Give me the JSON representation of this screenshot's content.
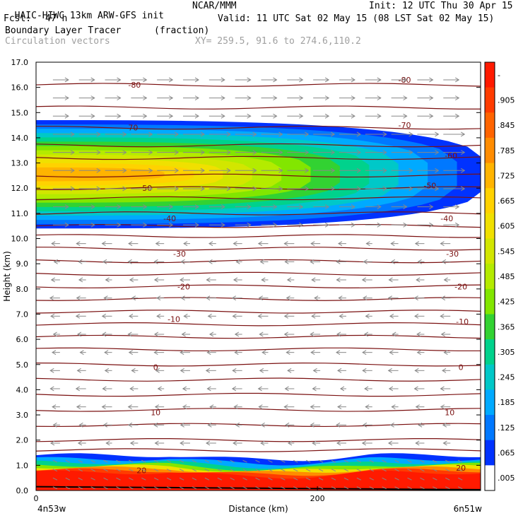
{
  "header": {
    "model": "HAIC-HIWC 13km ARW-GFS init",
    "org": "NCAR/MMM",
    "init": "Init: 12 UTC Thu 30 Apr 15",
    "fcst_label": "Fcst:",
    "fcst_value": "47 h",
    "valid": "Valid: 11 UTC Sat 02 May 15 (08 LST Sat 02 May 15)",
    "field_name": "Boundary Layer Tracer",
    "field_units": "(fraction)",
    "vectors_label": "Circulation vectors",
    "xy_range": "XY= 259.5, 91.6 to 274.6,110.2"
  },
  "chart_data": {
    "type": "heatmap",
    "ylabel": "Height (km)",
    "xlabel": "Distance (km)",
    "ylim": [
      0.0,
      17.0
    ],
    "xlim": [
      0,
      316
    ],
    "y_ticks": [
      "0.0",
      "1.0",
      "2.0",
      "3.0",
      "4.0",
      "5.0",
      "6.0",
      "7.0",
      "8.0",
      "9.0",
      "10.0",
      "11.0",
      "12.0",
      "13.0",
      "14.0",
      "15.0",
      "16.0",
      "17.0"
    ],
    "x_ticks": [
      {
        "value": 0,
        "label": "0"
      },
      {
        "value": 200,
        "label": "200"
      }
    ],
    "x_endpoint_labels": {
      "left": "4n53w",
      "right": "6n51w"
    },
    "colorbar_labels": [
      "-",
      ".905",
      ".845",
      ".785",
      ".725",
      ".665",
      ".605",
      ".545",
      ".485",
      ".425",
      ".365",
      ".305",
      ".245",
      ".185",
      ".125",
      ".065",
      ".005"
    ],
    "colorbar_colors": [
      "#ff1a00",
      "#ff3c00",
      "#ff6400",
      "#ff8c00",
      "#ffb400",
      "#ffd200",
      "#f0e000",
      "#d2e600",
      "#b4eb00",
      "#82e600",
      "#32d232",
      "#00d28c",
      "#00c8c8",
      "#00aaff",
      "#0078ff",
      "#0032ff",
      "#ffffff"
    ],
    "contour_field": "temperature (C)",
    "contour_labels": [
      {
        "value": "-80",
        "positions": [
          [
            70,
            16.1
          ],
          [
            262,
            16.3
          ]
        ]
      },
      {
        "value": "-70",
        "positions": [
          [
            68,
            14.4
          ],
          [
            262,
            14.5
          ]
        ]
      },
      {
        "value": "-60",
        "positions": [
          [
            295,
            13.3
          ]
        ]
      },
      {
        "value": "-50",
        "positions": [
          [
            78,
            12.0
          ],
          [
            280,
            12.1
          ]
        ]
      },
      {
        "value": "-40",
        "positions": [
          [
            95,
            10.8
          ],
          [
            292,
            10.8
          ]
        ]
      },
      {
        "value": "-30",
        "positions": [
          [
            102,
            9.4
          ],
          [
            296,
            9.4
          ]
        ]
      },
      {
        "value": "-20",
        "positions": [
          [
            105,
            8.1
          ],
          [
            302,
            8.1
          ]
        ]
      },
      {
        "value": "-10",
        "positions": [
          [
            98,
            6.8
          ],
          [
            303,
            6.7
          ]
        ]
      },
      {
        "value": "0",
        "positions": [
          [
            85,
            4.9
          ],
          [
            302,
            4.9
          ]
        ]
      },
      {
        "value": "10",
        "positions": [
          [
            85,
            3.1
          ],
          [
            294,
            3.1
          ]
        ]
      },
      {
        "value": "20",
        "positions": [
          [
            75,
            0.8
          ],
          [
            302,
            0.9
          ]
        ]
      }
    ],
    "upper_plume": {
      "description_values": {
        "x_end": 320,
        "z_bottom": 10.4,
        "z_top": 14.7,
        "max_fraction": 0.7
      }
    },
    "boundary_layer": {
      "z_top": 1.4,
      "max_fraction": 0.93
    }
  }
}
